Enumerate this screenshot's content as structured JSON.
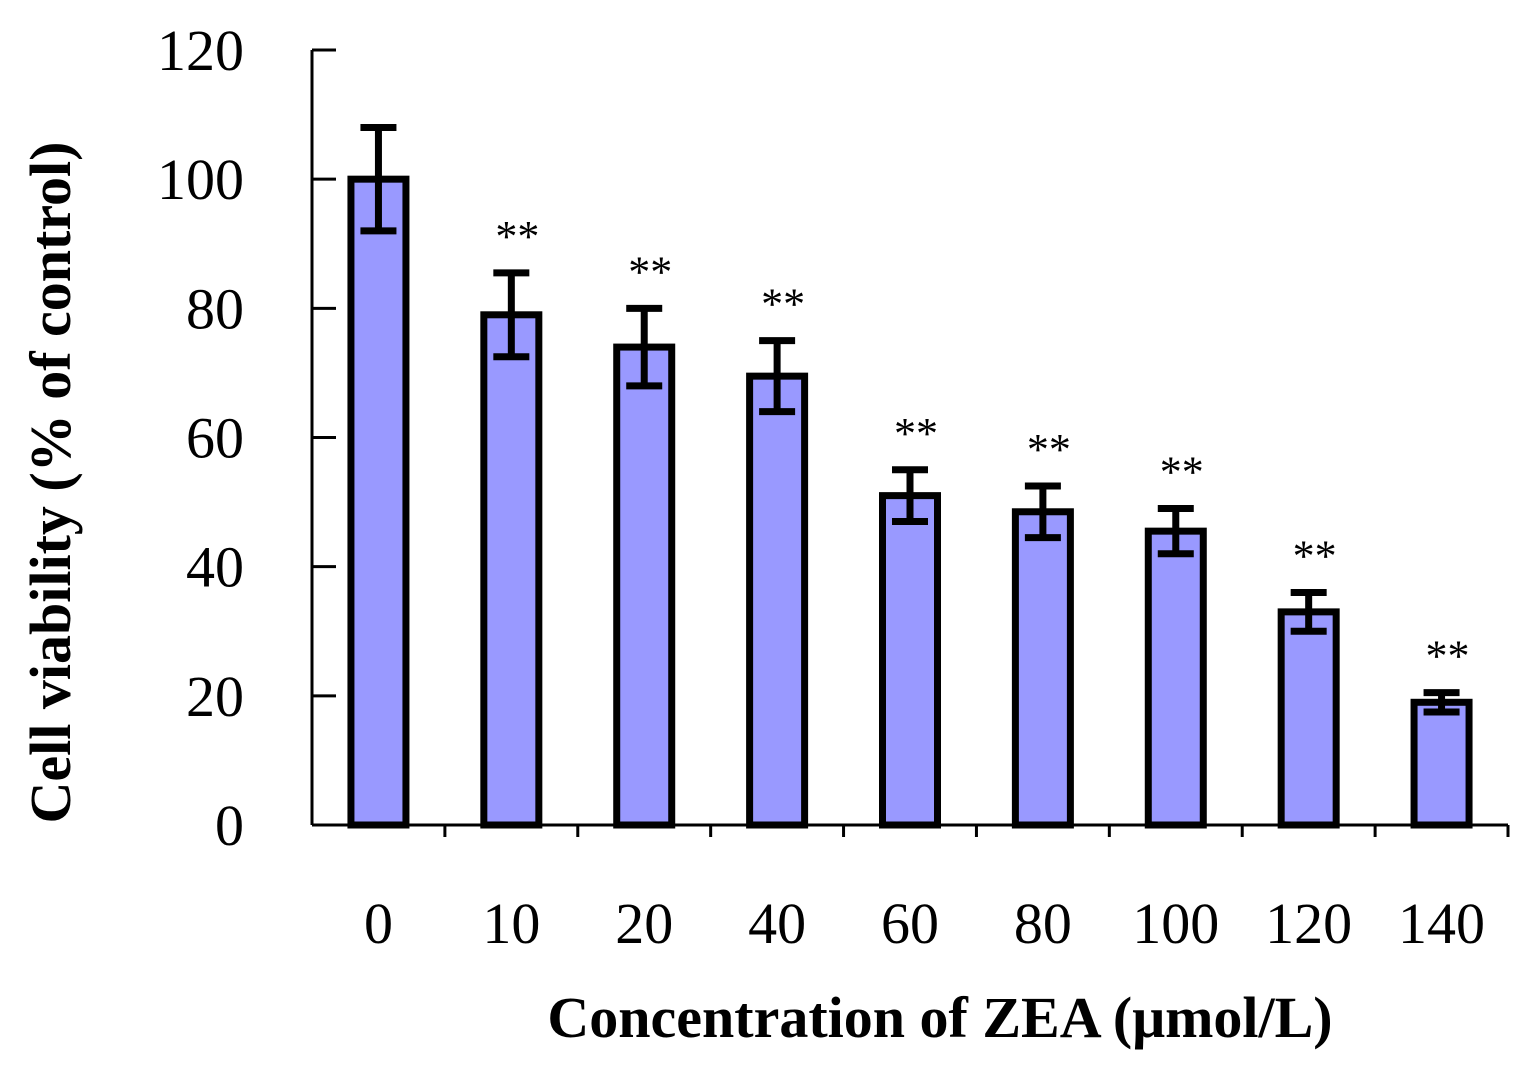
{
  "chart_data": {
    "type": "bar",
    "title": "",
    "xlabel": "Concentration of ZEA (μmol/L)",
    "ylabel": "Cell viability (% of control)",
    "categories": [
      "0",
      "10",
      "20",
      "40",
      "60",
      "80",
      "100",
      "120",
      "140"
    ],
    "values": [
      100,
      79,
      74,
      69.5,
      51,
      48.5,
      45.5,
      33,
      19
    ],
    "errors": [
      8,
      6.5,
      6,
      5.5,
      4,
      4,
      3.5,
      3,
      1.5
    ],
    "significance": [
      "",
      "**",
      "**",
      "**",
      "**",
      "**",
      "**",
      "**",
      "**"
    ],
    "ylim": [
      0,
      120
    ],
    "yticks": [
      0,
      20,
      40,
      60,
      80,
      100,
      120
    ],
    "grid": false,
    "legend": "none",
    "colors": {
      "bar_fill": "#9999ff",
      "bar_stroke": "#000000",
      "axis": "#000000"
    }
  }
}
